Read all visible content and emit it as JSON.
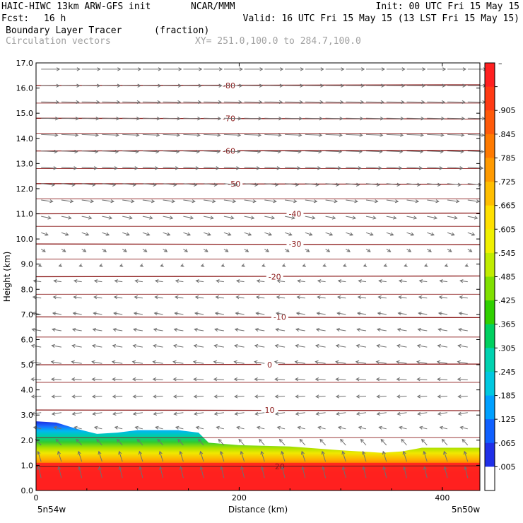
{
  "header": {
    "model": "HAIC-HIWC 13km ARW-GFS init",
    "org": "NCAR/MMM",
    "init": "Init: 00 UTC Fri 15 May 15",
    "fcst_label": "Fcst:",
    "fcst_value": "16 h",
    "valid": "Valid: 16 UTC Fri 15 May 15 (13 LST Fri 15 May 15)",
    "field": "Boundary Layer Tracer",
    "field_units": "(fraction)",
    "vectors_label": "Circulation vectors",
    "xy_label": "XY= 251.0,100.0 to 284.7,100.0"
  },
  "chart_data": {
    "type": "heatmap",
    "title": "Boundary Layer Tracer",
    "xlabel": "Distance (km)",
    "ylabel": "Height (km)",
    "xlim": [
      0,
      437
    ],
    "ylim": [
      0,
      17
    ],
    "x_ticks": [
      "0",
      "200",
      "400"
    ],
    "x_tick_values": [
      0,
      200,
      400
    ],
    "y_ticks": [
      "0.0",
      "1.0",
      "2.0",
      "3.0",
      "4.0",
      "5.0",
      "6.0",
      "7.0",
      "8.0",
      "9.0",
      "10.0",
      "11.0",
      "12.0",
      "13.0",
      "14.0",
      "15.0",
      "16.0",
      "17.0"
    ],
    "x_endpoints": {
      "left": "5n54w",
      "right": "5n50w"
    },
    "colorbar": {
      "labels": [
        "–",
        ".905",
        ".845",
        ".785",
        ".725",
        ".665",
        ".605",
        ".545",
        ".485",
        ".425",
        ".365",
        ".305",
        ".245",
        ".185",
        ".125",
        ".065",
        ".005"
      ],
      "colors": [
        "#ff2020",
        "#ff3a14",
        "#ff5a0a",
        "#ff7a00",
        "#ff9a00",
        "#ffbe00",
        "#ffe000",
        "#f0f000",
        "#c0ec00",
        "#80e000",
        "#30d000",
        "#00d060",
        "#00d2b0",
        "#00c8e0",
        "#00a0ff",
        "#1060ff",
        "#2030e8",
        "#ffffff"
      ]
    },
    "tracer_top_km": [
      [
        0,
        2.75
      ],
      [
        20,
        2.7
      ],
      [
        40,
        2.45
      ],
      [
        60,
        2.25
      ],
      [
        80,
        2.3
      ],
      [
        100,
        2.4
      ],
      [
        140,
        2.4
      ],
      [
        160,
        2.3
      ],
      [
        170,
        1.9
      ],
      [
        200,
        1.8
      ],
      [
        250,
        1.75
      ],
      [
        300,
        1.6
      ],
      [
        340,
        1.5
      ],
      [
        360,
        1.55
      ],
      [
        380,
        1.7
      ],
      [
        437,
        1.7
      ]
    ],
    "isotherms": [
      {
        "label": "-80",
        "height_km": 16.1,
        "label_x_km": 190
      },
      {
        "label": "-70",
        "height_km": 14.8,
        "label_x_km": 190
      },
      {
        "label": "-60",
        "height_km": 13.5,
        "label_x_km": 190
      },
      {
        "label": "-50",
        "height_km": 12.2,
        "label_x_km": 195
      },
      {
        "label": "-40",
        "height_km": 11.0,
        "label_x_km": 255
      },
      {
        "label": "-30",
        "height_km": 9.8,
        "label_x_km": 255
      },
      {
        "label": "-20",
        "height_km": 8.5,
        "label_x_km": 235
      },
      {
        "label": "-10",
        "height_km": 6.9,
        "label_x_km": 240
      },
      {
        "label": "0",
        "height_km": 5.0,
        "label_x_km": 230
      },
      {
        "label": "10",
        "height_km": 3.2,
        "label_x_km": 230
      },
      {
        "label": "20",
        "height_km": 0.95,
        "label_x_km": 240
      }
    ],
    "circulation_vectors": [
      {
        "height_km": 16.5,
        "u": 1.0,
        "w": 0.0
      },
      {
        "height_km": 13.0,
        "u": 0.85,
        "w": -0.05
      },
      {
        "height_km": 11.0,
        "u": 0.55,
        "w": -0.1
      },
      {
        "height_km": 9.5,
        "u": 0.2,
        "w": -0.15
      },
      {
        "height_km": 8.5,
        "u": -0.4,
        "w": 0.05
      },
      {
        "height_km": 5.0,
        "u": -0.55,
        "w": 0.1
      },
      {
        "height_km": 3.0,
        "u": -0.5,
        "w": -0.1
      },
      {
        "height_km": 1.0,
        "u": -0.15,
        "w": 0.6
      }
    ]
  }
}
